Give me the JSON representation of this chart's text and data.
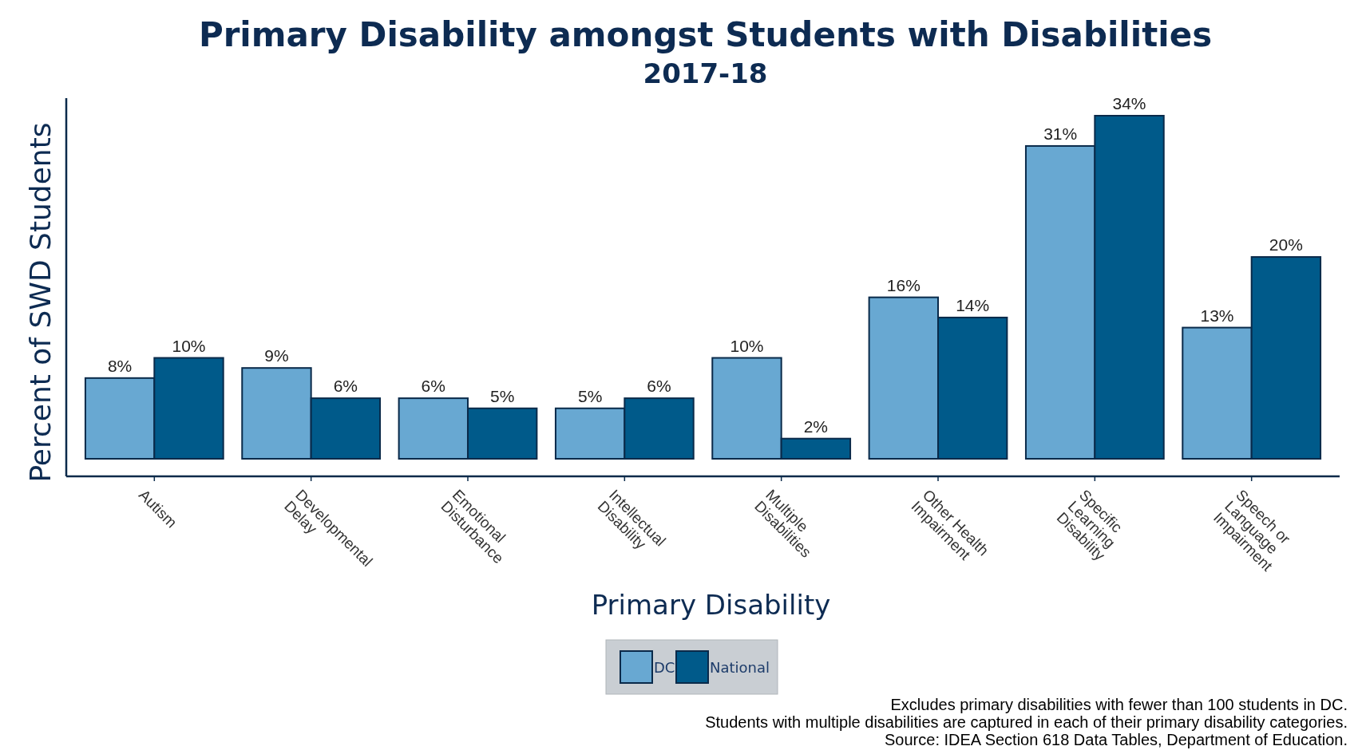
{
  "chart_data": {
    "type": "bar",
    "title": "Primary Disability amongst Students with Disabilities",
    "subtitle": "2017-18",
    "xlabel": "Primary Disability",
    "ylabel": "Percent of SWD Students",
    "categories": [
      "Autism",
      "Developmental\nDelay",
      "Emotional\nDisturbance",
      "Intellectual\nDisability",
      "Multiple\nDisabilities",
      "Other Health\nImpairment",
      "Specific\nLearning\nDisability",
      "Speech or\nLanguage\nImpairment"
    ],
    "series": [
      {
        "name": "DC",
        "color": "#68a8d2",
        "values": [
          8,
          9,
          6,
          5,
          10,
          16,
          31,
          13
        ],
        "value_labels": [
          "8%",
          "9%",
          "6%",
          "5%",
          "10%",
          "16%",
          "31%",
          "13%"
        ]
      },
      {
        "name": "National",
        "color": "#005a8a",
        "values": [
          10,
          6,
          5,
          6,
          2,
          14,
          34,
          20
        ],
        "value_labels": [
          "10%",
          "6%",
          "5%",
          "6%",
          "2%",
          "14%",
          "34%",
          "20%"
        ]
      }
    ],
    "legend": "bottom",
    "grid": false,
    "tick_labels": "x",
    "annotations": [
      "Excludes primary disabilities with fewer than 100 students in DC.",
      "Students with multiple disabilities are captured in each of their primary disability categories.",
      "Source: IDEA Section 618 Data Tables, Department of Education."
    ]
  }
}
